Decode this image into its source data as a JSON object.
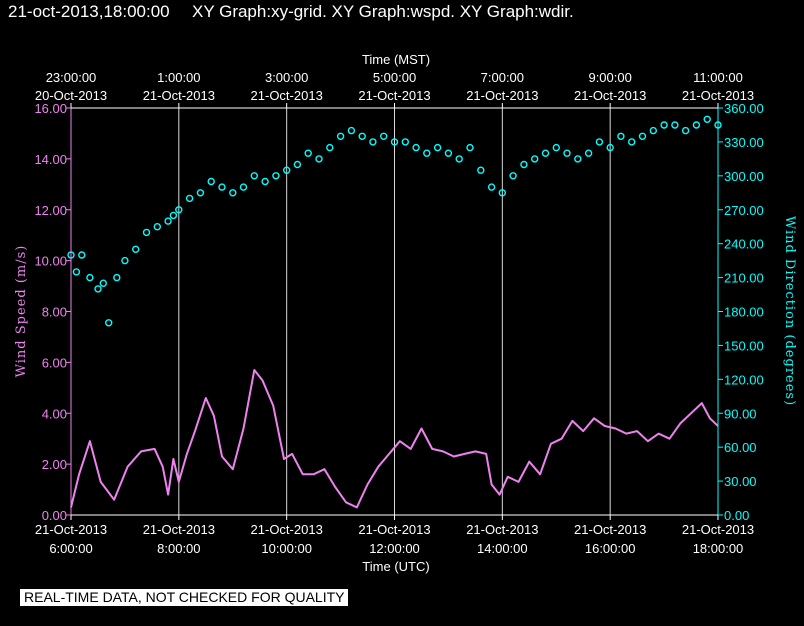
{
  "header": {
    "datetime": "21-oct-2013,18:00:00",
    "graphs": "XY Graph:xy-grid.  XY Graph:wspd.  XY Graph:wdir."
  },
  "footer": {
    "quality_notice": "REAL-TIME DATA, NOT CHECKED FOR QUALITY"
  },
  "colors": {
    "background": "#000000",
    "datetime": "#ffff00",
    "wind_speed": "#ee82ee",
    "wind_direction": "#00ffff",
    "grid": "#ffffff",
    "text": "#ffffff"
  },
  "chart_data": {
    "type": "line",
    "title": "",
    "grid": true,
    "x_bottom": {
      "label": "Time (UTC)",
      "range": [
        "2013-10-21 06:00",
        "2013-10-21 18:00"
      ],
      "ticks": [
        {
          "date": "21-Oct-2013",
          "time": "6:00:00"
        },
        {
          "date": "21-Oct-2013",
          "time": "8:00:00"
        },
        {
          "date": "21-Oct-2013",
          "time": "10:00:00"
        },
        {
          "date": "21-Oct-2013",
          "time": "12:00:00"
        },
        {
          "date": "21-Oct-2013",
          "time": "14:00:00"
        },
        {
          "date": "21-Oct-2013",
          "time": "16:00:00"
        },
        {
          "date": "21-Oct-2013",
          "time": "18:00:00"
        }
      ]
    },
    "x_top": {
      "label": "Time (MST)",
      "ticks": [
        {
          "time": "23:00:00",
          "date": "20-Oct-2013"
        },
        {
          "time": "1:00:00",
          "date": "21-Oct-2013"
        },
        {
          "time": "3:00:00",
          "date": "21-Oct-2013"
        },
        {
          "time": "5:00:00",
          "date": "21-Oct-2013"
        },
        {
          "time": "7:00:00",
          "date": "21-Oct-2013"
        },
        {
          "time": "9:00:00",
          "date": "21-Oct-2013"
        },
        {
          "time": "11:00:00",
          "date": "21-Oct-2013"
        }
      ]
    },
    "y_left": {
      "label": "Wind Speed (m/s)",
      "range": [
        0,
        16
      ],
      "ticks": [
        "0.00",
        "2.00",
        "4.00",
        "6.00",
        "8.00",
        "10.00",
        "12.00",
        "14.00",
        "16.00"
      ]
    },
    "y_right": {
      "label": "Wind Direction (degrees)",
      "range": [
        0,
        360
      ],
      "ticks": [
        "0.00",
        "30.00",
        "60.00",
        "90.00",
        "120.00",
        "150.00",
        "180.00",
        "210.00",
        "240.00",
        "270.00",
        "300.00",
        "330.00",
        "360.00"
      ]
    },
    "x_unit": "hours UTC",
    "series": [
      {
        "name": "Wind Speed",
        "axis": "left",
        "style": "line",
        "x": [
          6.0,
          6.15,
          6.35,
          6.55,
          6.8,
          7.05,
          7.3,
          7.55,
          7.7,
          7.8,
          7.9,
          8.0,
          8.15,
          8.3,
          8.5,
          8.65,
          8.8,
          9.0,
          9.2,
          9.4,
          9.55,
          9.75,
          9.95,
          10.1,
          10.3,
          10.5,
          10.7,
          10.9,
          11.1,
          11.3,
          11.5,
          11.7,
          11.9,
          12.1,
          12.3,
          12.5,
          12.7,
          12.9,
          13.1,
          13.3,
          13.5,
          13.7,
          13.8,
          13.95,
          14.1,
          14.3,
          14.5,
          14.7,
          14.9,
          15.1,
          15.3,
          15.5,
          15.7,
          15.9,
          16.1,
          16.3,
          16.5,
          16.7,
          16.9,
          17.1,
          17.3,
          17.5,
          17.7,
          17.85,
          18.0
        ],
        "y": [
          0.3,
          1.6,
          2.9,
          1.3,
          0.6,
          1.9,
          2.5,
          2.6,
          1.9,
          0.8,
          2.2,
          1.3,
          2.4,
          3.3,
          4.6,
          3.9,
          2.3,
          1.8,
          3.4,
          5.7,
          5.3,
          4.3,
          2.2,
          2.4,
          1.6,
          1.6,
          1.8,
          1.1,
          0.5,
          0.3,
          1.2,
          1.9,
          2.4,
          2.9,
          2.6,
          3.4,
          2.6,
          2.5,
          2.3,
          2.4,
          2.5,
          2.4,
          1.2,
          0.8,
          1.5,
          1.3,
          2.1,
          1.6,
          2.8,
          3.0,
          3.7,
          3.3,
          3.8,
          3.5,
          3.4,
          3.2,
          3.3,
          2.9,
          3.2,
          3.0,
          3.6,
          4.0,
          4.4,
          3.8,
          3.5
        ]
      },
      {
        "name": "Wind Direction",
        "axis": "right",
        "style": "markers",
        "x": [
          6.0,
          6.1,
          6.2,
          6.35,
          6.5,
          6.6,
          6.7,
          6.85,
          7.0,
          7.2,
          7.4,
          7.6,
          7.8,
          7.9,
          8.0,
          8.2,
          8.4,
          8.6,
          8.8,
          9.0,
          9.2,
          9.4,
          9.6,
          9.8,
          10.0,
          10.2,
          10.4,
          10.6,
          10.8,
          11.0,
          11.2,
          11.4,
          11.6,
          11.8,
          12.0,
          12.2,
          12.4,
          12.6,
          12.8,
          13.0,
          13.2,
          13.4,
          13.6,
          13.8,
          14.0,
          14.2,
          14.4,
          14.6,
          14.8,
          15.0,
          15.2,
          15.4,
          15.6,
          15.8,
          16.0,
          16.2,
          16.4,
          16.6,
          16.8,
          17.0,
          17.2,
          17.4,
          17.6,
          17.8,
          18.0
        ],
        "y": [
          230,
          215,
          230,
          210,
          200,
          205,
          170,
          210,
          225,
          235,
          250,
          255,
          260,
          265,
          270,
          280,
          285,
          295,
          290,
          285,
          290,
          300,
          295,
          300,
          305,
          310,
          320,
          315,
          325,
          335,
          340,
          335,
          330,
          335,
          330,
          330,
          325,
          320,
          325,
          320,
          315,
          325,
          305,
          290,
          285,
          300,
          310,
          315,
          320,
          325,
          320,
          315,
          320,
          330,
          325,
          335,
          330,
          335,
          340,
          345,
          345,
          340,
          345,
          350,
          345
        ]
      }
    ]
  }
}
